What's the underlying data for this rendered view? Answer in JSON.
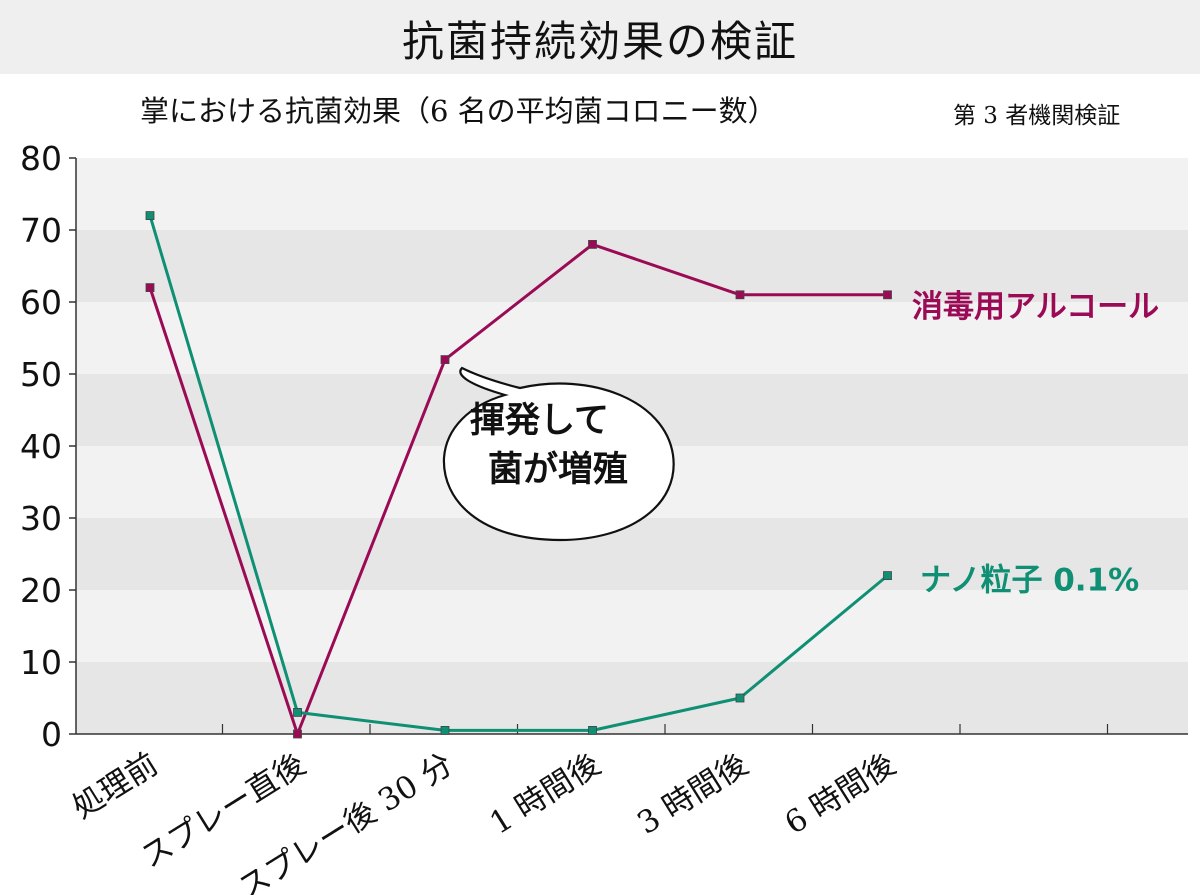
{
  "title": "抗菌持続効果の検証",
  "subtitle": "掌における抗菌効果（6 名の平均菌コロニー数）",
  "source_note": "第 3 者機関検証",
  "chart_data": {
    "type": "line",
    "categories": [
      "処理前",
      "スプレー直後",
      "スプレー後 30 分",
      "1 時間後",
      "3 時間後",
      "6 時間後"
    ],
    "ylim": [
      0,
      80
    ],
    "yticks": [
      0,
      10,
      20,
      30,
      40,
      50,
      60,
      70,
      80
    ],
    "grid": "alternating horizontal bands",
    "series": [
      {
        "name": "消毒用アルコール",
        "color": "#9b0b55",
        "values": [
          62,
          0,
          52,
          68,
          61,
          61
        ]
      },
      {
        "name": "ナノ粒子 0.1%",
        "color": "#0f8f73",
        "values": [
          72,
          3,
          0.5,
          0.5,
          5,
          22
        ]
      }
    ],
    "annotation": {
      "lines": [
        "揮発して",
        "菌が増殖"
      ]
    }
  }
}
